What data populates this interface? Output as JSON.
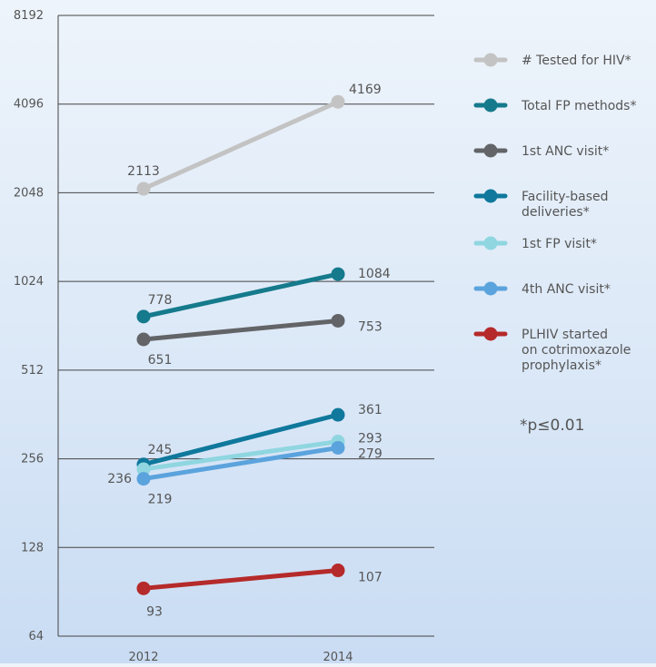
{
  "chart_data": {
    "type": "line",
    "title": "",
    "xlabel": "",
    "ylabel": "",
    "y_scale": "log2",
    "ylim": [
      64,
      8192
    ],
    "y_ticks": [
      "8192",
      "4096",
      "2048",
      "1024",
      "512",
      "256",
      "128",
      "64"
    ],
    "x": [
      "2012",
      "2014"
    ],
    "grid": "horizontal",
    "legend_position": "right",
    "series": [
      {
        "name": "# Tested for HIV*",
        "color": "#c3c3c3",
        "values": [
          2113,
          4169
        ],
        "labels": [
          "2113",
          "4169"
        ]
      },
      {
        "name": "Total FP methods*",
        "color": "#157a8c",
        "values": [
          778,
          1084
        ],
        "labels": [
          "778",
          "1084"
        ]
      },
      {
        "name": "1st ANC visit*",
        "color": "#626467",
        "values": [
          651,
          753
        ],
        "labels": [
          "651",
          "753"
        ]
      },
      {
        "name": "Facility-based deliveries*",
        "color": "#0f789c",
        "values": [
          245,
          361
        ],
        "labels": [
          "245",
          "361"
        ]
      },
      {
        "name": "1st FP visit*",
        "color": "#8fd6e0",
        "values": [
          236,
          293
        ],
        "labels": [
          "236",
          "293"
        ]
      },
      {
        "name": "4th ANC visit*",
        "color": "#5ba3dd",
        "values": [
          219,
          279
        ],
        "labels": [
          "219",
          "279"
        ]
      },
      {
        "name": "PLHIV started on cotrimoxazole prophylaxis*",
        "color": "#b52a2a",
        "values": [
          93,
          107
        ],
        "labels": [
          "93",
          "107"
        ]
      }
    ],
    "note": "*p≤0.01"
  }
}
